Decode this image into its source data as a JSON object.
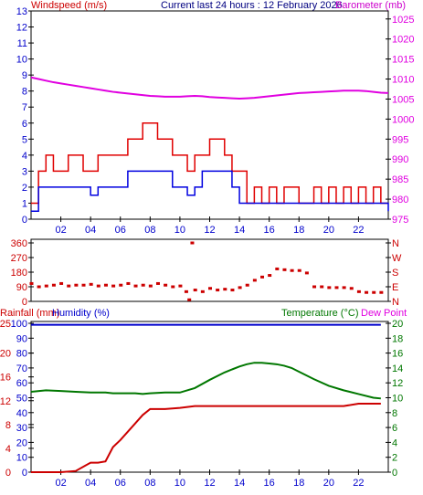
{
  "header": {
    "left_title": "Windspeed (m/s)",
    "center_title": "Current last 24 hours : 12 February 2026",
    "right_title": "Barometer (mb)"
  },
  "colors": {
    "wind_max": "#e00000",
    "wind_avg": "#0000e0",
    "barometer": "#e000e0",
    "direction": "#cc0000",
    "rainfall": "#cc0000",
    "humidity": "#0000cc",
    "temperature": "#007700",
    "dew_point": "#e000e0",
    "axis": "#000000",
    "tick_text": "#0000cc",
    "grid": "#cccccc"
  },
  "x_ticks": [
    "02",
    "04",
    "06",
    "08",
    "10",
    "12",
    "14",
    "16",
    "18",
    "20",
    "22"
  ],
  "chart_data": [
    {
      "type": "line",
      "title": "Current last 24 hours : 12 February 2026",
      "ylabel": "Windspeed (m/s)",
      "y2label": "Barometer (mb)",
      "ylim": [
        0,
        13
      ],
      "y2lim": [
        975,
        1027
      ],
      "xlim": [
        0,
        24
      ],
      "y_ticks": [
        0,
        1,
        2,
        3,
        4,
        5,
        6,
        7,
        8,
        9,
        10,
        11,
        12,
        13
      ],
      "y2_ticks": [
        975,
        980,
        985,
        990,
        995,
        1000,
        1005,
        1010,
        1015,
        1020,
        1025
      ],
      "grid": false,
      "x": [
        0.0,
        0.5,
        1.0,
        1.5,
        2.0,
        2.5,
        3.0,
        3.5,
        4.0,
        4.5,
        5.0,
        5.5,
        6.0,
        6.5,
        7.0,
        7.5,
        8.0,
        8.5,
        9.0,
        9.5,
        10.0,
        10.5,
        11.0,
        11.5,
        12.0,
        12.5,
        13.0,
        13.5,
        14.0,
        14.5,
        15.0,
        15.5,
        16.0,
        16.5,
        17.0,
        17.5,
        18.0,
        18.5,
        19.0,
        19.5,
        20.0,
        20.5,
        21.0,
        21.5,
        22.0,
        22.5,
        23.0,
        23.5,
        24.0
      ],
      "series": [
        {
          "name": "Windspeed",
          "kind": "wind_max",
          "values": [
            1,
            3,
            4,
            3,
            3,
            4,
            4,
            3,
            3,
            4,
            4,
            4,
            4,
            5,
            5,
            6,
            6,
            5,
            5,
            4,
            4,
            3,
            4,
            4,
            5,
            5,
            4,
            3,
            3,
            1,
            2,
            1,
            2,
            1,
            2,
            2,
            1,
            1,
            2,
            1,
            2,
            1,
            2,
            1,
            2,
            1,
            2,
            1,
            1
          ]
        },
        {
          "name": "",
          "kind": "wind_avg",
          "values": [
            0.5,
            2,
            2,
            2,
            2,
            2,
            2,
            2,
            1.5,
            2,
            2,
            2,
            2,
            3,
            3,
            3,
            3,
            3,
            3,
            2,
            2,
            1.5,
            2,
            3,
            3,
            3,
            3,
            2,
            1,
            1,
            1,
            1,
            1,
            1,
            1,
            1,
            1,
            1,
            1,
            1,
            1,
            1,
            1,
            1,
            1,
            1,
            1,
            1,
            0.5
          ]
        },
        {
          "name": "Barometer",
          "kind": "barometer",
          "values": [
            1010.4,
            1010.0,
            1009.6,
            1009.2,
            1008.9,
            1008.6,
            1008.3,
            1008.0,
            1007.7,
            1007.4,
            1007.1,
            1006.8,
            1006.6,
            1006.4,
            1006.2,
            1006.0,
            1005.8,
            1005.7,
            1005.6,
            1005.6,
            1005.6,
            1005.7,
            1005.8,
            1005.7,
            1005.5,
            1005.4,
            1005.3,
            1005.2,
            1005.1,
            1005.2,
            1005.3,
            1005.5,
            1005.7,
            1005.9,
            1006.1,
            1006.3,
            1006.5,
            1006.6,
            1006.7,
            1006.8,
            1006.9,
            1007.0,
            1007.1,
            1007.1,
            1007.1,
            1007.0,
            1006.8,
            1006.6,
            1006.5
          ]
        }
      ]
    },
    {
      "type": "scatter",
      "ylabel_right": [
        "N",
        "W",
        "S",
        "E",
        "N"
      ],
      "ylim": [
        0,
        360
      ],
      "xlim": [
        0,
        24
      ],
      "y_ticks": [
        0,
        90,
        180,
        270,
        360
      ],
      "grid": false,
      "series": [
        {
          "name": "Wind direction",
          "kind": "direction",
          "x": [
            0.0,
            0.5,
            1.0,
            1.5,
            2.0,
            2.5,
            3.0,
            3.5,
            4.0,
            4.5,
            5.0,
            5.5,
            6.0,
            6.5,
            7.0,
            7.5,
            8.0,
            8.5,
            9.0,
            9.5,
            10.0,
            10.4,
            10.6,
            10.8,
            11.0,
            11.5,
            12.0,
            12.5,
            13.0,
            13.5,
            14.0,
            14.5,
            15.0,
            15.5,
            16.0,
            16.5,
            17.0,
            17.5,
            18.0,
            18.5,
            19.0,
            19.5,
            20.0,
            20.5,
            21.0,
            21.5,
            22.0,
            22.5,
            23.0,
            23.5
          ],
          "values": [
            110,
            90,
            95,
            100,
            110,
            95,
            100,
            100,
            105,
            95,
            100,
            95,
            100,
            110,
            95,
            100,
            95,
            110,
            100,
            90,
            95,
            60,
            10,
            360,
            70,
            60,
            80,
            70,
            75,
            70,
            85,
            100,
            130,
            150,
            160,
            200,
            195,
            190,
            190,
            175,
            90,
            90,
            85,
            85,
            85,
            80,
            60,
            55,
            55,
            55
          ]
        }
      ]
    },
    {
      "type": "line",
      "ylabel": "Rainfall (mm)",
      "ylabel2": "Humidity (%)",
      "y2label": "Temperature (°C)",
      "y3label": "Dew Point",
      "ylim_rain": [
        0,
        25
      ],
      "ylim_humidity": [
        0,
        100
      ],
      "y2lim": [
        0,
        20
      ],
      "xlim": [
        0,
        24
      ],
      "y_ticks_rain": [
        0,
        4,
        8,
        12,
        16,
        20,
        25
      ],
      "y_ticks_humidity": [
        0,
        10,
        20,
        30,
        40,
        50,
        60,
        70,
        80,
        90,
        100
      ],
      "y2_ticks": [
        0,
        2,
        4,
        6,
        8,
        10,
        12,
        14,
        16,
        18,
        20
      ],
      "grid": false,
      "x": [
        0,
        1,
        2,
        3,
        4,
        4.5,
        5,
        5.5,
        6,
        6.5,
        7,
        7.5,
        8,
        9,
        10,
        11,
        12,
        13,
        14,
        14.5,
        15,
        15.5,
        16,
        16.5,
        17,
        17.5,
        18,
        19,
        20,
        21,
        22,
        23,
        23.5
      ],
      "series": [
        {
          "name": "Humidity",
          "kind": "humidity",
          "values": [
            99,
            99,
            99,
            99,
            99,
            99,
            99,
            99,
            99,
            99,
            99,
            99,
            99,
            99,
            99,
            99,
            99,
            99,
            99,
            99,
            99,
            99,
            99,
            99,
            99,
            99,
            99,
            99,
            99,
            99,
            99,
            99,
            99
          ]
        },
        {
          "name": "Temperature",
          "kind": "temperature",
          "values": [
            10.8,
            11.0,
            10.9,
            10.8,
            10.7,
            10.7,
            10.7,
            10.6,
            10.6,
            10.6,
            10.6,
            10.5,
            10.6,
            10.7,
            10.7,
            11.3,
            12.4,
            13.4,
            14.2,
            14.5,
            14.7,
            14.7,
            14.6,
            14.5,
            14.3,
            14.0,
            13.5,
            12.5,
            11.6,
            11.0,
            10.5,
            10.0,
            9.9
          ]
        },
        {
          "name": "Rainfall",
          "kind": "rainfall",
          "values": [
            0,
            0,
            0,
            0.2,
            1.6,
            1.6,
            1.8,
            4.2,
            5.4,
            6.8,
            8.2,
            9.6,
            10.6,
            10.6,
            10.8,
            11.1,
            11.1,
            11.1,
            11.1,
            11.1,
            11.1,
            11.1,
            11.1,
            11.1,
            11.1,
            11.1,
            11.1,
            11.1,
            11.1,
            11.1,
            11.5,
            11.5,
            11.5
          ]
        }
      ]
    }
  ]
}
